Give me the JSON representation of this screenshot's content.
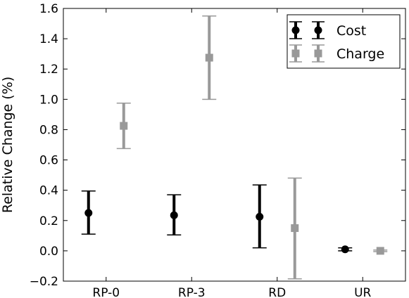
{
  "chart_data": {
    "type": "errorbar",
    "title": "",
    "xlabel": "",
    "ylabel": "Relative Change (%)",
    "categories": [
      "RP-0",
      "RP-3",
      "RD",
      "UR"
    ],
    "ylim": [
      -0.2,
      1.6
    ],
    "yticks": [
      "−0.2",
      "0.0",
      "0.2",
      "0.4",
      "0.6",
      "0.8",
      "1.0",
      "1.2",
      "1.4",
      "1.6"
    ],
    "grid": false,
    "legend_position": "top-right",
    "series": [
      {
        "name": "Cost",
        "color": "#000000",
        "marker": "circle",
        "values": [
          0.25,
          0.235,
          0.225,
          0.01
        ],
        "err_low": [
          0.11,
          0.105,
          0.02,
          0.0
        ],
        "err_high": [
          0.395,
          0.37,
          0.435,
          0.02
        ]
      },
      {
        "name": "Charge",
        "color": "#999999",
        "marker": "square",
        "values": [
          0.825,
          1.275,
          0.15,
          0.0
        ],
        "err_low": [
          0.675,
          1.0,
          -0.185,
          -0.005
        ],
        "err_high": [
          0.975,
          1.55,
          0.48,
          0.005
        ]
      }
    ]
  }
}
